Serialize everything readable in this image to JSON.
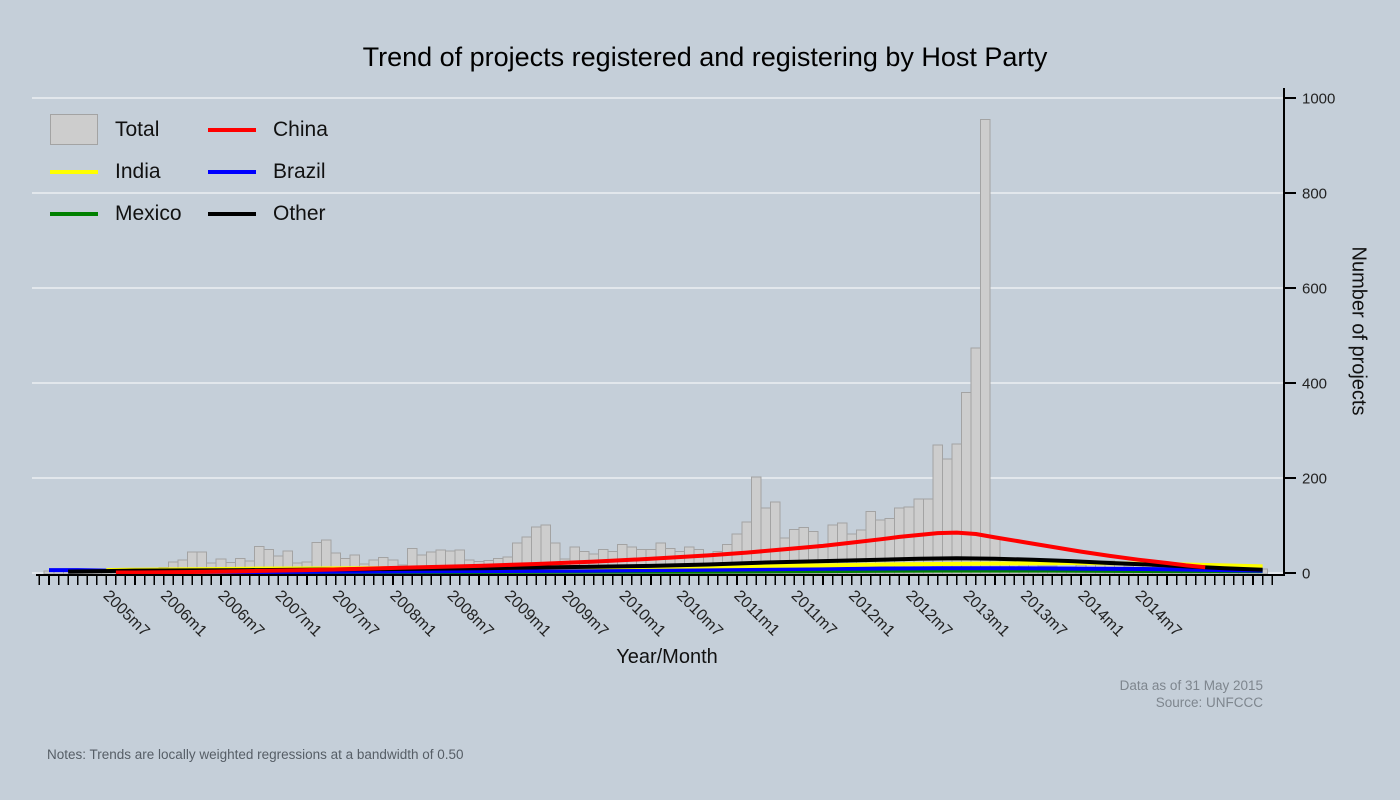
{
  "title": "Trend of projects registered and registering by Host Party",
  "legend": {
    "items": [
      {
        "label": "Total",
        "color": "#cdcdcd",
        "border": "#a3a3a3",
        "swatch": "bar"
      },
      {
        "label": "China",
        "color": "#ff0000",
        "swatch": "line"
      },
      {
        "label": "India",
        "color": "#ffff00",
        "swatch": "line"
      },
      {
        "label": "Brazil",
        "color": "#0000ff",
        "swatch": "line"
      },
      {
        "label": "Mexico",
        "color": "#008000",
        "swatch": "line"
      },
      {
        "label": "Other",
        "color": "#000000",
        "swatch": "line"
      }
    ]
  },
  "x_axis": {
    "title": "Year/Month",
    "tick_labels": [
      "2005m7",
      "2006m1",
      "2006m7",
      "2007m1",
      "2007m7",
      "2008m1",
      "2008m7",
      "2009m1",
      "2009m7",
      "2010m1",
      "2010m7",
      "2011m1",
      "2011m7",
      "2012m1",
      "2012m7",
      "2013m1",
      "2013m7",
      "2014m1",
      "2014m7"
    ]
  },
  "y_axis": {
    "title": "Number of projects",
    "ticks": [
      0,
      200,
      400,
      600,
      800,
      1000
    ]
  },
  "notes": "Notes: Trends are locally weighted regressions at a bandwidth of 0.50",
  "source": {
    "line1": "Data as of 31 May 2015",
    "line2": "Source: UNFCCC"
  },
  "colors": {
    "background": "#c5cfd9",
    "gridline": "#ffffff",
    "axis": "#000000",
    "bar_fill": "#cdcdcd",
    "bar_border": "#a3a3a3"
  },
  "chart_data": {
    "type": "bar",
    "title": "Trend of projects registered and registering by Host Party",
    "xlabel": "Year/Month",
    "ylabel": "Number of projects",
    "ylim": [
      0,
      1000
    ],
    "grid": true,
    "legend_position": "top-left",
    "bar_series_name": "Total",
    "bars_start_month": "2004m10",
    "bars_monthly_interval": 1,
    "total_monthly": [
      4,
      5,
      3,
      2,
      3,
      3,
      2,
      4,
      6,
      5,
      6,
      10,
      12,
      23,
      27,
      44,
      44,
      21,
      29,
      22,
      31,
      25,
      56,
      50,
      36,
      46,
      21,
      23,
      64,
      69,
      42,
      31,
      38,
      19,
      27,
      33,
      27,
      17,
      52,
      38,
      44,
      48,
      46,
      48,
      27,
      24,
      26,
      31,
      34,
      63,
      76,
      97,
      101,
      63,
      30,
      55,
      45,
      40,
      50,
      45,
      60,
      55,
      50,
      50,
      63,
      52,
      45,
      55,
      50,
      40,
      45,
      60,
      82,
      107,
      202,
      137,
      150,
      74,
      92,
      96,
      87,
      60,
      101,
      105,
      82,
      91,
      130,
      112,
      115,
      137,
      139,
      156,
      156,
      270,
      240,
      272,
      380,
      474,
      955,
      74,
      21,
      21,
      17,
      17,
      15,
      15,
      13,
      13,
      17,
      20,
      25,
      25,
      18,
      15,
      21,
      15,
      13,
      20,
      15,
      12,
      10,
      10,
      10,
      8,
      7,
      8,
      7,
      8
    ],
    "trend_note": "trend line points are [months_since_2005m7, value] pairs (lowess trends)",
    "series": [
      {
        "name": "Mexico",
        "color": "#008000",
        "points": [
          [
            14,
            1
          ],
          [
            24,
            2
          ],
          [
            36,
            2
          ],
          [
            48,
            3
          ],
          [
            60,
            3
          ],
          [
            72,
            4
          ],
          [
            84,
            5
          ],
          [
            96,
            5
          ],
          [
            108,
            4
          ],
          [
            118,
            4
          ]
        ]
      },
      {
        "name": "Brazil",
        "color": "#0000ff",
        "points": [
          [
            -9,
            6
          ],
          [
            -6,
            6
          ],
          [
            -3,
            5
          ],
          [
            0,
            4
          ],
          [
            6,
            3
          ],
          [
            12,
            2
          ],
          [
            24,
            3
          ],
          [
            36,
            4
          ],
          [
            48,
            5
          ],
          [
            60,
            7
          ],
          [
            72,
            9
          ],
          [
            84,
            10
          ],
          [
            92,
            10
          ],
          [
            100,
            9
          ],
          [
            108,
            8
          ],
          [
            114,
            6
          ],
          [
            118,
            5
          ]
        ]
      },
      {
        "name": "India",
        "color": "#ffff00",
        "points": [
          [
            -3,
            6
          ],
          [
            0,
            7
          ],
          [
            6,
            8
          ],
          [
            12,
            9
          ],
          [
            24,
            10
          ],
          [
            36,
            11
          ],
          [
            48,
            12
          ],
          [
            60,
            14
          ],
          [
            72,
            16
          ],
          [
            78,
            18
          ],
          [
            84,
            19
          ],
          [
            90,
            20
          ],
          [
            98,
            21
          ],
          [
            104,
            20
          ],
          [
            110,
            18
          ],
          [
            114,
            16
          ],
          [
            118,
            14
          ]
        ]
      },
      {
        "name": "Other",
        "color": "#000000",
        "points": [
          [
            -7,
            3
          ],
          [
            0,
            5
          ],
          [
            12,
            6
          ],
          [
            24,
            8
          ],
          [
            36,
            10
          ],
          [
            48,
            13
          ],
          [
            54,
            15
          ],
          [
            60,
            18
          ],
          [
            66,
            22
          ],
          [
            72,
            25
          ],
          [
            78,
            28
          ],
          [
            82,
            30
          ],
          [
            86,
            31
          ],
          [
            90,
            30
          ],
          [
            94,
            28
          ],
          [
            98,
            25
          ],
          [
            102,
            21
          ],
          [
            106,
            18
          ],
          [
            110,
            14
          ],
          [
            114,
            10
          ],
          [
            118,
            7
          ]
        ]
      },
      {
        "name": "China",
        "color": "#ff0000",
        "points": [
          [
            -2,
            1
          ],
          [
            0,
            1
          ],
          [
            6,
            2
          ],
          [
            12,
            4
          ],
          [
            18,
            6
          ],
          [
            24,
            9
          ],
          [
            30,
            12
          ],
          [
            36,
            15
          ],
          [
            42,
            19
          ],
          [
            48,
            24
          ],
          [
            54,
            30
          ],
          [
            60,
            37
          ],
          [
            64,
            43
          ],
          [
            68,
            50
          ],
          [
            72,
            57
          ],
          [
            75,
            64
          ],
          [
            78,
            71
          ],
          [
            80,
            76
          ],
          [
            82,
            80
          ],
          [
            84,
            84
          ],
          [
            86,
            85
          ],
          [
            88,
            82
          ],
          [
            90,
            75
          ],
          [
            93,
            65
          ],
          [
            96,
            55
          ],
          [
            99,
            45
          ],
          [
            102,
            36
          ],
          [
            105,
            28
          ],
          [
            108,
            21
          ],
          [
            110,
            16
          ],
          [
            112,
            12
          ]
        ]
      }
    ]
  }
}
